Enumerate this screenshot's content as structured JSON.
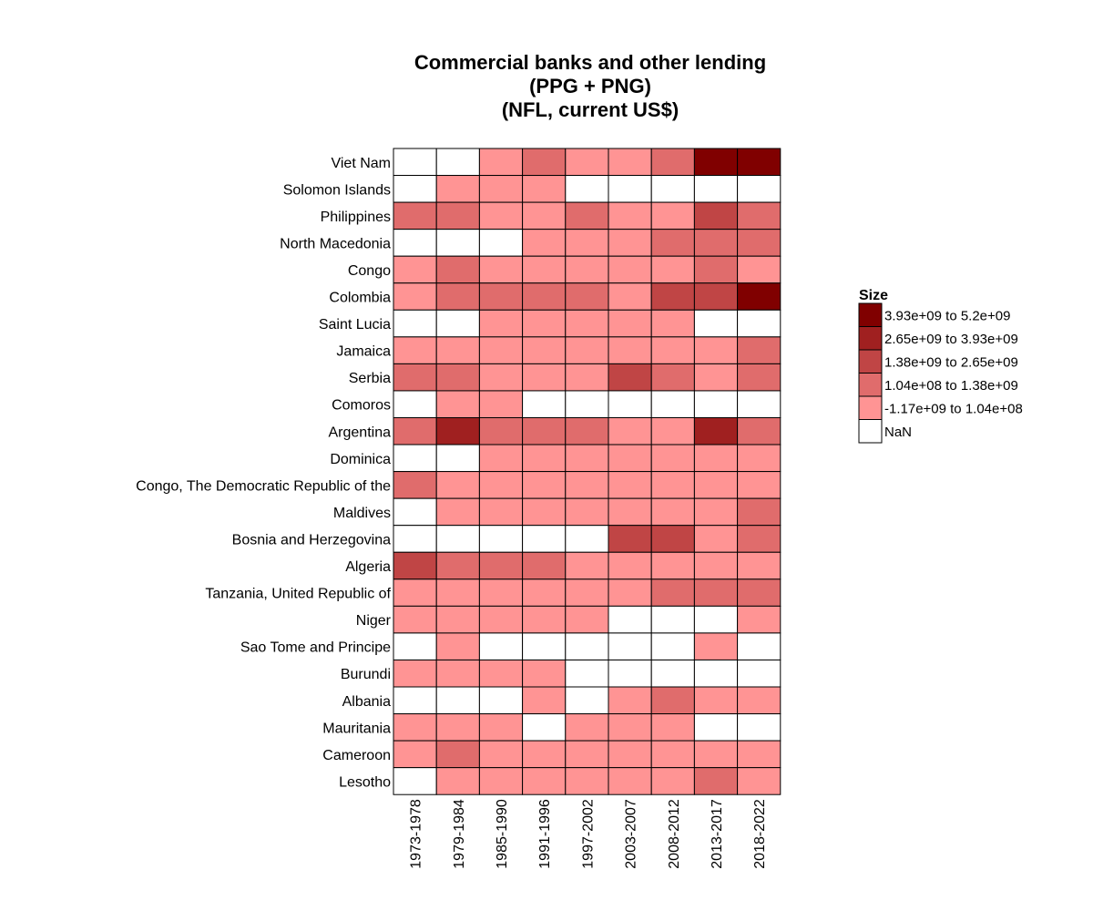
{
  "chart_data": {
    "type": "heatmap",
    "title_lines": [
      "Commercial banks and other lending",
      "(PPG + PNG)",
      "(NFL, current US$)"
    ],
    "columns": [
      "1973-1978",
      "1979-1984",
      "1985-1990",
      "1991-1996",
      "1997-2002",
      "2003-2007",
      "2008-2012",
      "2013-2017",
      "2018-2022"
    ],
    "rows": [
      "Viet Nam",
      "Solomon Islands",
      "Philippines",
      "North Macedonia",
      "Congo",
      "Colombia",
      "Saint Lucia",
      "Jamaica",
      "Serbia",
      "Comoros",
      "Argentina",
      "Dominica",
      "Congo, The Democratic Republic of the",
      "Maldives",
      "Bosnia and Herzegovina",
      "Algeria",
      "Tanzania, United Republic of",
      "Niger",
      "Sao Tome and Principe",
      "Burundi",
      "Albania",
      "Mauritania",
      "Cameroon",
      "Lesotho"
    ],
    "legend": {
      "title": "Size",
      "bins": [
        {
          "label": "3.93e+09 to 5.2e+09",
          "color": "#800000"
        },
        {
          "label": "2.65e+09 to 3.93e+09",
          "color": "#a02020"
        },
        {
          "label": "1.38e+09 to 2.65e+09",
          "color": "#c04545"
        },
        {
          "label": "1.04e+08 to 1.38e+09",
          "color": "#e06c6c"
        },
        {
          "label": "-1.17e+09 to 1.04e+08",
          "color": "#ff9494"
        },
        {
          "label": "NaN",
          "color": "#ffffff"
        }
      ]
    },
    "bin_index_note_values": "each cell is the legend bin index (0 = highest bin, 5 = NaN)",
    "values": [
      [
        5,
        5,
        4,
        3,
        4,
        4,
        3,
        0,
        0
      ],
      [
        5,
        4,
        4,
        4,
        5,
        5,
        5,
        5,
        5
      ],
      [
        3,
        3,
        4,
        4,
        3,
        4,
        4,
        2,
        3
      ],
      [
        5,
        5,
        5,
        4,
        4,
        4,
        3,
        3,
        3
      ],
      [
        4,
        3,
        4,
        4,
        4,
        4,
        4,
        3,
        4
      ],
      [
        4,
        3,
        3,
        3,
        3,
        4,
        2,
        2,
        0
      ],
      [
        5,
        5,
        4,
        4,
        4,
        4,
        4,
        5,
        5
      ],
      [
        4,
        4,
        4,
        4,
        4,
        4,
        4,
        4,
        3
      ],
      [
        3,
        3,
        4,
        4,
        4,
        2,
        3,
        4,
        3
      ],
      [
        5,
        4,
        4,
        5,
        5,
        5,
        5,
        5,
        5
      ],
      [
        3,
        1,
        3,
        3,
        3,
        4,
        4,
        1,
        3
      ],
      [
        5,
        5,
        4,
        4,
        4,
        4,
        4,
        4,
        4
      ],
      [
        3,
        4,
        4,
        4,
        4,
        4,
        4,
        4,
        4
      ],
      [
        5,
        4,
        4,
        4,
        4,
        4,
        4,
        4,
        3
      ],
      [
        5,
        5,
        5,
        5,
        5,
        2,
        2,
        4,
        3
      ],
      [
        2,
        3,
        3,
        3,
        4,
        4,
        4,
        4,
        4
      ],
      [
        4,
        4,
        4,
        4,
        4,
        4,
        3,
        3,
        3
      ],
      [
        4,
        4,
        4,
        4,
        4,
        5,
        5,
        5,
        4
      ],
      [
        5,
        4,
        5,
        5,
        5,
        5,
        5,
        4,
        5
      ],
      [
        4,
        4,
        4,
        4,
        5,
        5,
        5,
        5,
        5
      ],
      [
        5,
        5,
        5,
        4,
        5,
        4,
        3,
        4,
        4
      ],
      [
        4,
        4,
        4,
        5,
        4,
        4,
        4,
        5,
        5
      ],
      [
        4,
        3,
        4,
        4,
        4,
        4,
        4,
        4,
        4
      ],
      [
        5,
        4,
        4,
        4,
        4,
        4,
        4,
        3,
        4
      ]
    ]
  }
}
